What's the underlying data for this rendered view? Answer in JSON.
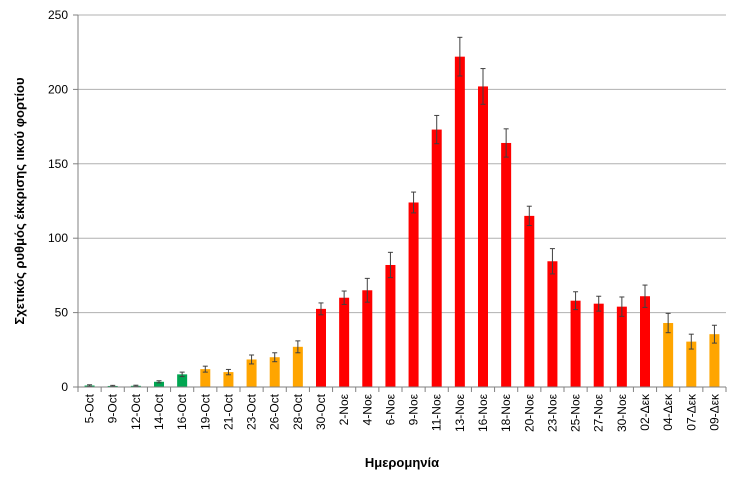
{
  "chart_data": {
    "type": "bar",
    "title": "",
    "xlabel": "Ημερομηνία",
    "ylabel": "Σχετικός ρυθμός έκκρισης ιικού φορτίου",
    "ylim": [
      0,
      250
    ],
    "yticks": [
      0,
      50,
      100,
      150,
      200,
      250
    ],
    "grid": true,
    "legend": "none",
    "categories": [
      "5-Oct",
      "9-Oct",
      "12-Oct",
      "14-Oct",
      "16-Oct",
      "19-Oct",
      "21-Oct",
      "23-Oct",
      "26-Oct",
      "28-Oct",
      "30-Oct",
      "2-Νοε",
      "4-Νοε",
      "6-Νοε",
      "9-Νοε",
      "11-Νοε",
      "13-Νοε",
      "16-Νοε",
      "18-Νοε",
      "20-Νοε",
      "23-Νοε",
      "25-Νοε",
      "27-Νοε",
      "30-Νοε",
      "02-Δεκ",
      "04-Δεκ",
      "07-Δεκ",
      "09-Δεκ"
    ],
    "values": [
      1,
      0.7,
      0.8,
      3.5,
      8.5,
      12,
      10,
      18.5,
      20,
      27,
      52.5,
      60,
      65,
      82,
      124,
      173,
      222,
      202,
      164,
      115,
      84.5,
      58,
      56,
      54,
      61,
      43,
      30.5,
      35.5
    ],
    "errors": [
      0.5,
      0.4,
      0.4,
      0.7,
      1.5,
      2,
      1.8,
      3,
      3,
      4,
      4,
      4.5,
      8,
      8.5,
      7,
      9.5,
      13,
      12,
      9.5,
      6.5,
      8.5,
      6,
      5,
      6.5,
      7.5,
      6.5,
      5,
      6
    ],
    "bar_colors": [
      "#00a651",
      "#00a651",
      "#00a651",
      "#00a651",
      "#00a651",
      "#ffa500",
      "#ffa500",
      "#ffa500",
      "#ffa500",
      "#ffa500",
      "#ff0000",
      "#ff0000",
      "#ff0000",
      "#ff0000",
      "#ff0000",
      "#ff0000",
      "#ff0000",
      "#ff0000",
      "#ff0000",
      "#ff0000",
      "#ff0000",
      "#ff0000",
      "#ff0000",
      "#ff0000",
      "#ff0000",
      "#ffa500",
      "#ffa500",
      "#ffa500"
    ],
    "colors": {
      "green": "#00a651",
      "orange": "#ffa500",
      "red": "#ff0000",
      "grid": "#b0b0b0",
      "errorbar": "#404040"
    }
  }
}
